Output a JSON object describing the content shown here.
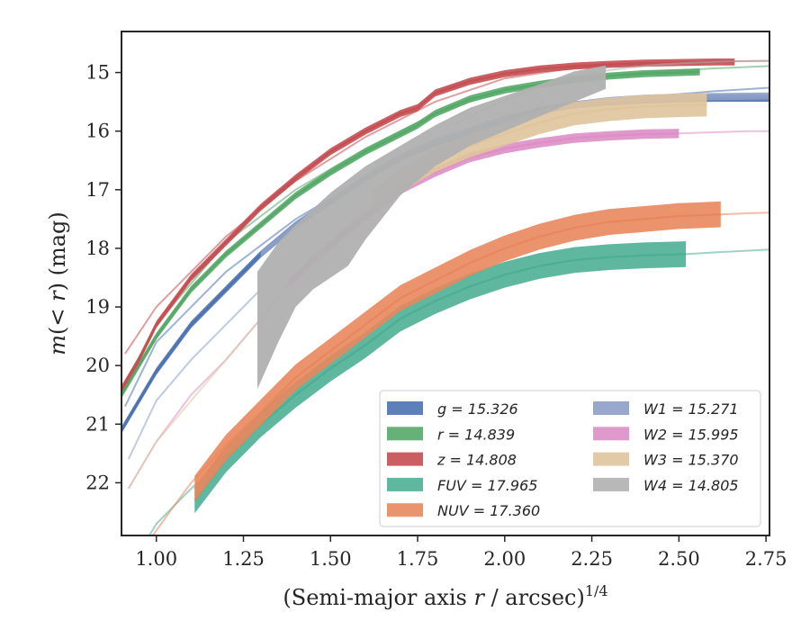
{
  "chart_data": {
    "type": "line",
    "title": "",
    "xlabel_main": "(Semi-major axis ",
    "xlabel_var": "r",
    "xlabel_tail": " / arcsec)",
    "xlabel_sup": "1/4",
    "ylabel_m": "m",
    "ylabel_mid": "(< ",
    "ylabel_r": "r",
    "ylabel_tail": ") (mag)",
    "xlim": [
      0.9,
      2.76
    ],
    "ylim": [
      22.9,
      14.3
    ],
    "y_inverted": true,
    "xticks": [
      1.0,
      1.25,
      1.5,
      1.75,
      2.0,
      2.25,
      2.5,
      2.75
    ],
    "xtick_labels": [
      "1.00",
      "1.25",
      "1.50",
      "1.75",
      "2.00",
      "2.25",
      "2.50",
      "2.75"
    ],
    "yticks": [
      15,
      16,
      17,
      18,
      19,
      20,
      21,
      22
    ],
    "ytick_labels": [
      "15",
      "16",
      "17",
      "18",
      "19",
      "20",
      "21",
      "22"
    ],
    "grid": false,
    "legend_position": "lower-right",
    "series": [
      {
        "name": "g",
        "legend": "g = 15.326",
        "color": "#4c72b0",
        "band_width": 0.06,
        "solid_x": [
          0.9,
          0.95,
          1.0,
          1.1,
          1.2,
          1.3,
          1.4,
          1.5,
          1.6,
          1.7,
          1.8,
          1.9,
          2.0,
          2.1,
          2.2,
          2.3,
          2.4,
          2.5,
          2.6,
          2.76
        ],
        "solid_y": [
          21.1,
          20.6,
          20.1,
          19.3,
          18.7,
          18.1,
          17.6,
          17.2,
          16.8,
          16.45,
          16.2,
          16.0,
          15.8,
          15.65,
          15.55,
          15.5,
          15.47,
          15.45,
          15.44,
          15.44
        ],
        "faded_x": [
          0.91,
          1.0,
          1.2,
          1.4,
          1.6,
          1.8,
          2.0,
          2.2,
          2.4,
          2.6,
          2.76
        ],
        "faded_y": [
          20.7,
          19.6,
          18.4,
          17.5,
          16.8,
          16.2,
          15.8,
          15.55,
          15.42,
          15.32,
          15.26
        ]
      },
      {
        "name": "r",
        "legend": "r = 14.839",
        "color": "#55a868",
        "band_width": 0.06,
        "solid_x": [
          0.9,
          0.95,
          1.0,
          1.1,
          1.2,
          1.3,
          1.4,
          1.5,
          1.6,
          1.7,
          1.75,
          1.8,
          1.9,
          2.0,
          2.1,
          2.2,
          2.3,
          2.4,
          2.5,
          2.56
        ],
        "solid_y": [
          20.5,
          20.0,
          19.5,
          18.7,
          18.1,
          17.6,
          17.1,
          16.7,
          16.35,
          16.05,
          15.9,
          15.7,
          15.45,
          15.3,
          15.2,
          15.12,
          15.06,
          15.02,
          15.0,
          14.99
        ],
        "faded_x": [
          0.91,
          1.0,
          1.2,
          1.4,
          1.6,
          1.8,
          2.0,
          2.2,
          2.4,
          2.6,
          2.76
        ],
        "faded_y": [
          20.3,
          19.3,
          17.9,
          17.0,
          16.3,
          15.7,
          15.3,
          15.1,
          15.0,
          14.93,
          14.89
        ]
      },
      {
        "name": "z",
        "legend": "z = 14.808",
        "color": "#c44e52",
        "band_width": 0.06,
        "solid_x": [
          0.9,
          0.95,
          1.0,
          1.1,
          1.2,
          1.3,
          1.4,
          1.5,
          1.6,
          1.7,
          1.75,
          1.8,
          1.85,
          1.9,
          2.0,
          2.1,
          2.2,
          2.3,
          2.4,
          2.5,
          2.6,
          2.66
        ],
        "solid_y": [
          20.4,
          19.9,
          19.3,
          18.5,
          17.9,
          17.3,
          16.8,
          16.35,
          16.0,
          15.7,
          15.6,
          15.35,
          15.25,
          15.15,
          15.02,
          14.94,
          14.89,
          14.86,
          14.84,
          14.83,
          14.82,
          14.82
        ],
        "faded_x": [
          0.91,
          1.0,
          1.2,
          1.4,
          1.6,
          1.8,
          2.0,
          2.2,
          2.4,
          2.6,
          2.76
        ],
        "faded_y": [
          19.8,
          19.0,
          17.8,
          16.85,
          16.1,
          15.5,
          15.1,
          14.92,
          14.85,
          14.81,
          14.8
        ]
      },
      {
        "name": "FUV",
        "legend": "FUV = 17.965",
        "color": "#4caf93",
        "band_width": 0.22,
        "solid_x": [
          1.11,
          1.2,
          1.3,
          1.4,
          1.5,
          1.6,
          1.7,
          1.8,
          1.9,
          2.0,
          2.1,
          2.2,
          2.3,
          2.4,
          2.52
        ],
        "solid_y": [
          22.3,
          21.6,
          21.0,
          20.5,
          20.05,
          19.65,
          19.2,
          18.9,
          18.65,
          18.45,
          18.3,
          18.2,
          18.15,
          18.12,
          18.1
        ],
        "faded_x": [
          0.97,
          1.0,
          1.05,
          1.1,
          1.2,
          1.3
        ],
        "faded_y": [
          23.0,
          22.7,
          22.4,
          22.1,
          21.55,
          21.0
        ],
        "faded_tail_x": [
          2.52,
          2.6,
          2.7,
          2.76
        ],
        "faded_tail_y": [
          18.1,
          18.07,
          18.04,
          18.02
        ]
      },
      {
        "name": "NUV",
        "legend": "NUV = 17.360",
        "color": "#e8875d",
        "band_width": 0.22,
        "solid_x": [
          1.11,
          1.2,
          1.3,
          1.4,
          1.5,
          1.6,
          1.7,
          1.8,
          1.9,
          2.0,
          2.1,
          2.2,
          2.3,
          2.4,
          2.5,
          2.62
        ],
        "solid_y": [
          22.1,
          21.4,
          20.8,
          20.2,
          19.75,
          19.3,
          18.85,
          18.55,
          18.25,
          18.0,
          17.8,
          17.65,
          17.55,
          17.5,
          17.45,
          17.42
        ],
        "faded_x": [
          0.99,
          1.05,
          1.1,
          1.2,
          1.3
        ],
        "faded_y": [
          22.9,
          22.4,
          22.0,
          21.35,
          20.8
        ],
        "faded_tail_x": [
          2.62,
          2.7,
          2.76
        ],
        "faded_tail_y": [
          17.42,
          17.4,
          17.39
        ]
      },
      {
        "name": "W1",
        "legend": "W1 = 15.271",
        "color": "#8c9ec7",
        "band_width": 0.06,
        "solid_x": [
          1.3,
          1.4,
          1.5,
          1.6,
          1.7,
          1.8,
          1.9,
          2.0,
          2.1,
          2.2,
          2.3,
          2.4,
          2.5,
          2.6,
          2.76
        ],
        "solid_y": [
          18.1,
          17.6,
          17.2,
          16.8,
          16.45,
          16.2,
          16.0,
          15.8,
          15.65,
          15.55,
          15.48,
          15.44,
          15.42,
          15.41,
          15.4
        ],
        "faded_x": [
          0.92,
          1.0,
          1.1,
          1.2,
          1.3
        ],
        "faded_y": [
          21.6,
          20.6,
          19.9,
          19.3,
          18.7
        ]
      },
      {
        "name": "W2",
        "legend": "W2 = 15.995",
        "color": "#dd8ec5",
        "band_width": 0.08,
        "solid_x": [
          1.38,
          1.45,
          1.5,
          1.6,
          1.7,
          1.8,
          1.9,
          2.0,
          2.1,
          2.2,
          2.3,
          2.4,
          2.5
        ],
        "solid_y": [
          18.6,
          18.2,
          17.95,
          17.45,
          17.0,
          16.7,
          16.45,
          16.3,
          16.2,
          16.12,
          16.08,
          16.05,
          16.04
        ],
        "faded_x": [
          0.92,
          1.0,
          1.1,
          1.2,
          1.3,
          1.38
        ],
        "faded_y": [
          22.1,
          21.3,
          20.5,
          19.9,
          19.2,
          18.6
        ],
        "faded_tail_x": [
          2.5,
          2.6,
          2.7,
          2.76
        ],
        "faded_tail_y": [
          16.04,
          16.02,
          16.0,
          16.0
        ]
      },
      {
        "name": "W3",
        "legend": "W3 = 15.370",
        "color": "#e0c49c",
        "band_width": 0.2,
        "solid_x": [
          1.62,
          1.7,
          1.8,
          1.9,
          2.0,
          2.1,
          2.2,
          2.3,
          2.4,
          2.5,
          2.58
        ],
        "solid_y": [
          17.2,
          16.85,
          16.5,
          16.25,
          16.05,
          15.85,
          15.7,
          15.63,
          15.58,
          15.56,
          15.55
        ],
        "faded_x": [
          0.92,
          1.0,
          1.1,
          1.2,
          1.3,
          1.4,
          1.5,
          1.62
        ],
        "faded_y": [
          22.1,
          21.3,
          20.6,
          19.9,
          19.2,
          18.6,
          17.9,
          17.2
        ]
      },
      {
        "name": "W4",
        "legend": "W4 = 14.805",
        "color": "#b0b0b0",
        "band_upper_x": [
          1.29,
          1.35,
          1.4,
          1.5,
          1.6,
          1.7,
          1.8,
          1.9,
          2.0,
          2.1,
          2.2,
          2.29
        ],
        "band_upper_y": [
          18.4,
          17.9,
          17.6,
          17.05,
          16.6,
          16.25,
          15.9,
          15.6,
          15.4,
          15.2,
          14.98,
          14.88
        ],
        "band_lower_x": [
          1.29,
          1.35,
          1.4,
          1.45,
          1.55,
          1.6,
          1.7,
          1.8,
          1.9,
          2.0,
          2.1,
          2.2,
          2.29
        ],
        "band_lower_y": [
          20.4,
          19.6,
          19.0,
          18.7,
          18.3,
          17.85,
          17.1,
          16.6,
          16.25,
          16.0,
          15.75,
          15.5,
          15.28
        ],
        "faded_x": [
          1.85,
          1.95,
          2.05,
          2.15,
          2.25,
          2.35,
          2.45,
          2.55,
          2.65,
          2.76
        ],
        "faded_y": [
          15.9,
          15.6,
          15.35,
          15.15,
          15.0,
          14.92,
          14.86,
          14.83,
          14.81,
          14.8
        ]
      }
    ]
  }
}
